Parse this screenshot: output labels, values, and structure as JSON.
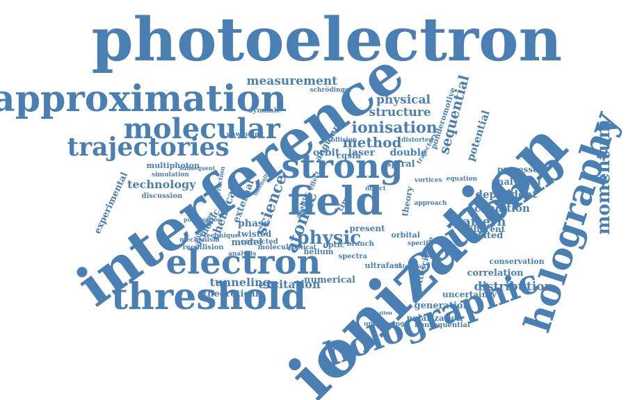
{
  "color": "#4a7fb3",
  "words": [
    "photoelectron",
    "ionization",
    "interference",
    "coulomb",
    "holography",
    "holographic",
    "approximation",
    "threshold",
    "electron",
    "field",
    "strong",
    "molecular",
    "trajectories",
    "momentum",
    "measurement",
    "ionisation",
    "sequential",
    "structure",
    "physical",
    "method",
    "atomic",
    "science",
    "physic",
    "pattern",
    "distribution",
    "excitation",
    "tunneling",
    "technology",
    "experimental",
    "condition",
    "dependent",
    "analytical",
    "processes",
    "excited",
    "polarization",
    "generation",
    "uncertainty",
    "correlation",
    "potential",
    "ponderomotive",
    "double",
    "orbit",
    "laser",
    "spiral",
    "model",
    "chemical",
    "external",
    "harmonic",
    "phase",
    "twisted",
    "theoretical",
    "numerical",
    "attoscience",
    "ultrafast",
    "spectra",
    "present",
    "different",
    "conservation",
    "nonsequential",
    "undergoing",
    "multiphoton",
    "simulation",
    "discussion",
    "recollision",
    "mechanism",
    "corrected",
    "molecule",
    "helium",
    "branch",
    "orbital",
    "dynamic",
    "unwinding",
    "angular",
    "collision",
    "distorted",
    "schrödinger",
    "trajectory",
    "vortices",
    "equation",
    "approach",
    "theory",
    "direct",
    "time",
    "optical",
    "optic",
    "specific",
    "correction",
    "subsequent",
    "estimation",
    "interplay",
    "analysis",
    "technique",
    "polarisation",
    "expression",
    "intensity",
    "effect",
    "analytic",
    "cqsfa"
  ]
}
